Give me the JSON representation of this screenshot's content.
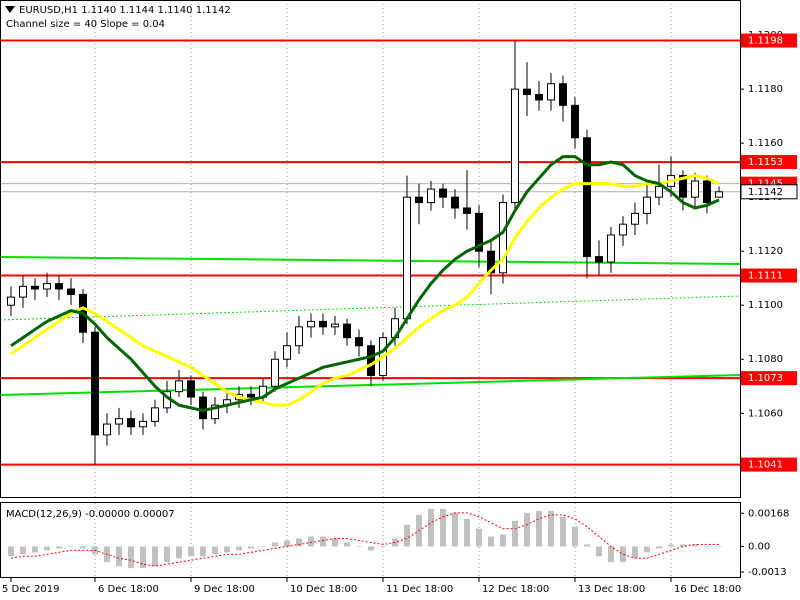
{
  "chart_data": {
    "type": "candlestick",
    "title": "EURUSD,H1  1.1140 1.1144 1.1140 1.1142",
    "subtitle": "Channel size = 40 Slope = 0.04",
    "categories": [
      "5 Dec 2019",
      null,
      null,
      null,
      null,
      null,
      null,
      "6 Dec 18:00",
      null,
      null,
      null,
      null,
      null,
      null,
      null,
      "9 Dec 18:00",
      null,
      null,
      null,
      null,
      null,
      null,
      null,
      "10 Dec 18:00",
      null,
      null,
      null,
      null,
      null,
      null,
      null,
      "11 Dec 18:00",
      null,
      null,
      null,
      null,
      null,
      null,
      null,
      "12 Dec 18:00",
      null,
      null,
      null,
      null,
      null,
      null,
      null,
      "13 Dec 18:00",
      null,
      null,
      null,
      null,
      null,
      null,
      null,
      "16 Dec 18:00",
      null,
      null,
      null,
      null
    ],
    "open": [
      1.11,
      1.1103,
      1.1107,
      1.1106,
      1.1108,
      1.1106,
      1.1104,
      1.109,
      1.1052,
      1.1056,
      1.1058,
      1.1055,
      1.1057,
      1.1062,
      1.1068,
      1.1072,
      1.1066,
      1.1058,
      1.1063,
      1.1065,
      1.1067,
      1.1066,
      1.107,
      1.108,
      1.1085,
      1.1092,
      1.1094,
      1.1092,
      1.1093,
      1.1088,
      1.1085,
      1.1074,
      1.1088,
      1.1095,
      1.114,
      1.1138,
      1.1143,
      1.114,
      1.1136,
      1.1134,
      1.112,
      1.1112,
      1.1138,
      1.118,
      1.1178,
      1.1176,
      1.1182,
      1.1174,
      1.1162,
      1.1118,
      1.1116,
      1.1126,
      1.113,
      1.1134,
      1.114,
      1.1144,
      1.1148,
      1.114,
      1.1146,
      1.114
    ],
    "high": [
      1.1107,
      1.1111,
      1.111,
      1.1112,
      1.1111,
      1.111,
      1.1106,
      1.1092,
      1.106,
      1.1062,
      1.1061,
      1.106,
      1.1065,
      1.1072,
      1.1076,
      1.1074,
      1.1068,
      1.1066,
      1.1068,
      1.107,
      1.107,
      1.1073,
      1.1083,
      1.109,
      1.1096,
      1.1097,
      1.1097,
      1.1096,
      1.1095,
      1.1091,
      1.1087,
      1.109,
      1.1099,
      1.1148,
      1.1145,
      1.1146,
      1.1145,
      1.1143,
      1.115,
      1.1137,
      1.1124,
      1.1141,
      1.1198,
      1.119,
      1.1183,
      1.1186,
      1.1185,
      1.1177,
      1.1165,
      1.1124,
      1.1129,
      1.1133,
      1.1138,
      1.1146,
      1.1152,
      1.1155,
      1.115,
      1.1149,
      1.1148,
      1.1144
    ],
    "low": [
      1.1096,
      1.1099,
      1.1102,
      1.1103,
      1.1102,
      1.11,
      1.1086,
      1.1041,
      1.1048,
      1.1052,
      1.1052,
      1.1052,
      1.1055,
      1.106,
      1.1066,
      1.1063,
      1.1054,
      1.1056,
      1.106,
      1.1062,
      1.1063,
      1.1064,
      1.1068,
      1.1077,
      1.1082,
      1.1088,
      1.1089,
      1.1089,
      1.1085,
      1.1081,
      1.107,
      1.1072,
      1.1085,
      1.1093,
      1.113,
      1.1135,
      1.1136,
      1.1132,
      1.1128,
      1.1114,
      1.1104,
      1.1108,
      1.1135,
      1.117,
      1.1172,
      1.1172,
      1.1168,
      1.1158,
      1.111,
      1.1111,
      1.1112,
      1.1122,
      1.1126,
      1.113,
      1.1137,
      1.114,
      1.1135,
      1.1136,
      1.1134,
      1.114
    ],
    "close": [
      1.1103,
      1.1107,
      1.1106,
      1.1108,
      1.1106,
      1.1104,
      1.109,
      1.1052,
      1.1056,
      1.1058,
      1.1055,
      1.1057,
      1.1062,
      1.1068,
      1.1072,
      1.1066,
      1.1058,
      1.1063,
      1.1065,
      1.1067,
      1.1066,
      1.107,
      1.108,
      1.1085,
      1.1092,
      1.1094,
      1.1092,
      1.1093,
      1.1088,
      1.1085,
      1.1074,
      1.1088,
      1.1095,
      1.114,
      1.1138,
      1.1143,
      1.114,
      1.1136,
      1.1134,
      1.112,
      1.1112,
      1.1138,
      1.118,
      1.1178,
      1.1176,
      1.1182,
      1.1174,
      1.1162,
      1.1118,
      1.1116,
      1.1126,
      1.113,
      1.1134,
      1.114,
      1.1144,
      1.1148,
      1.114,
      1.1146,
      1.1138,
      1.1142
    ],
    "ma_series": [
      {
        "color": "#ffff00",
        "values": [
          1.1082,
          1.1085,
          1.1088,
          1.1091,
          1.1094,
          1.1097,
          1.1099,
          1.1097,
          1.1094,
          1.1091,
          1.1088,
          1.1085,
          1.1083,
          1.1081,
          1.1079,
          1.1077,
          1.1074,
          1.1071,
          1.1068,
          1.1066,
          1.1065,
          1.1064,
          1.1063,
          1.1063,
          1.1065,
          1.1068,
          1.1071,
          1.1073,
          1.1074,
          1.1076,
          1.1078,
          1.1081,
          1.1084,
          1.1088,
          1.1092,
          1.1095,
          1.1098,
          1.11,
          1.1103,
          1.1108,
          1.1113,
          1.1117,
          1.1125,
          1.1131,
          1.1136,
          1.114,
          1.1143,
          1.1145,
          1.1145,
          1.1145,
          1.1145,
          1.1144,
          1.1144,
          1.1145,
          1.1145,
          1.1146,
          1.1147,
          1.1148,
          1.1147,
          1.1145
        ]
      },
      {
        "color": "#006400",
        "values": [
          1.1085,
          1.1088,
          1.1091,
          1.1094,
          1.1096,
          1.1098,
          1.1097,
          1.1093,
          1.1088,
          1.1084,
          1.108,
          1.1075,
          1.107,
          1.1066,
          1.1063,
          1.1062,
          1.1061,
          1.1062,
          1.1063,
          1.1064,
          1.1065,
          1.1066,
          1.1069,
          1.1071,
          1.1073,
          1.1075,
          1.1077,
          1.1078,
          1.1079,
          1.108,
          1.1081,
          1.1083,
          1.1088,
          1.1095,
          1.1102,
          1.1108,
          1.1113,
          1.1117,
          1.112,
          1.1122,
          1.1124,
          1.1127,
          1.1135,
          1.1142,
          1.1147,
          1.1152,
          1.1155,
          1.1155,
          1.1152,
          1.1152,
          1.1153,
          1.1152,
          1.1148,
          1.1146,
          1.1145,
          1.1142,
          1.1138,
          1.1136,
          1.1137,
          1.1139
        ]
      }
    ],
    "ylim": [
      1.1029,
      1.1213
    ],
    "yticks": [
      {
        "value": 1.12,
        "label": "1.1200"
      },
      {
        "value": 1.118,
        "label": "1.1180"
      },
      {
        "value": 1.116,
        "label": "1.1160"
      },
      {
        "value": 1.114,
        "label": "1.1140"
      },
      {
        "value": 1.112,
        "label": "1.1120"
      },
      {
        "value": 1.11,
        "label": "1.1100"
      },
      {
        "value": 1.108,
        "label": "1.1080"
      },
      {
        "value": 1.106,
        "label": "1.1060"
      }
    ],
    "levels": {
      "color": "#ff0000",
      "values": [
        1.1198,
        1.1153,
        1.1111,
        1.1073,
        1.1041
      ]
    },
    "price_markers": [
      {
        "value": 1.1145,
        "color": "#ff0000"
      },
      {
        "value": 1.1142,
        "color": "#ffffff"
      }
    ],
    "macd": {
      "label": "MACD(12,26,9) -0.00000 0.00007",
      "histogram_color": "#c0c0c0",
      "signal_color": "#ff0000",
      "histogram": [
        -0.0005,
        -0.0004,
        -0.0003,
        -0.0002,
        -0.0001,
        0,
        -0.0001,
        -0.0004,
        -0.0008,
        -0.001,
        -0.0011,
        -0.0011,
        -0.001,
        -0.0008,
        -0.0006,
        -0.0005,
        -0.0005,
        -0.0004,
        -0.0003,
        -0.0002,
        -0.0001,
        0,
        0.0002,
        0.0003,
        0.0004,
        0.0005,
        0.0005,
        0.0004,
        0.0002,
        0,
        -0.0002,
        0,
        0.0004,
        0.0011,
        0.0016,
        0.0019,
        0.0019,
        0.0017,
        0.0014,
        0.0009,
        0.0005,
        0.0006,
        0.0013,
        0.0017,
        0.0018,
        0.0018,
        0.0015,
        0.001,
        0.0001,
        -0.0005,
        -0.0008,
        -0.0008,
        -0.0006,
        -0.0003,
        -0.0001,
        0.0001,
        0.0001,
        0.0001,
        0,
        0
      ],
      "signal": [
        -0.0006,
        -0.0005,
        -0.0005,
        -0.0004,
        -0.0003,
        -0.0002,
        -0.0002,
        -0.0002,
        -0.0004,
        -0.0006,
        -0.0007,
        -0.0009,
        -0.001,
        -0.0009,
        -0.0008,
        -0.0007,
        -0.0006,
        -0.0005,
        -0.0004,
        -0.0004,
        -0.0003,
        -0.0002,
        -0.0001,
        0,
        0.0001,
        0.0002,
        0.0003,
        0.0004,
        0.0004,
        0.0003,
        0.0002,
        0.0001,
        0.0002,
        0.0004,
        0.0008,
        0.0012,
        0.0015,
        0.0017,
        0.0017,
        0.0015,
        0.0012,
        0.0009,
        0.0009,
        0.0011,
        0.0014,
        0.0016,
        0.0016,
        0.0014,
        0.001,
        0.0005,
        0,
        -0.0004,
        -0.0006,
        -0.0006,
        -0.0004,
        -0.0002,
        0,
        0.0001,
        0.0001,
        0.0001
      ],
      "ylim": [
        -0.0016,
        0.0022
      ],
      "yticks": [
        0.00168,
        {
          "value": 0,
          "label": "0.00"
        },
        -0.0013
      ]
    }
  }
}
